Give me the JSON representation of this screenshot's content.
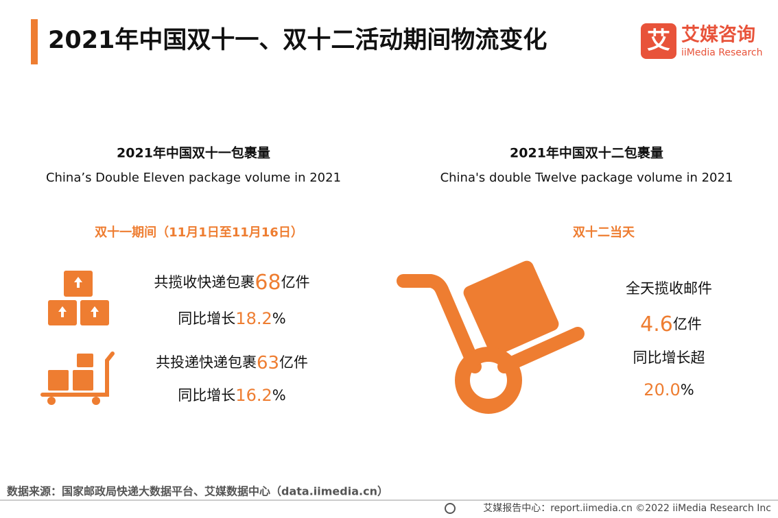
{
  "header": {
    "title": "2021年中国双十一、双十二活动期间物流变化",
    "logo_mark": "艾",
    "logo_name": "艾媒咨询",
    "logo_sub": "iiMedia Research"
  },
  "left": {
    "title": "2021年中国双十一包裹量",
    "subtitle": "China’s Double Eleven package volume in 2021",
    "period": "双十一期间（11月1日至11月16日）",
    "items": [
      {
        "line1_prefix": "共揽收快递包裹",
        "line1_value": "68",
        "line1_suffix": "亿件",
        "line2_prefix": "同比增长",
        "line2_value": "18.2",
        "line2_suffix": "%"
      },
      {
        "line1_prefix": "共投递快递包裹",
        "line1_value": "63",
        "line1_suffix": "亿件",
        "line2_prefix": "同比增长",
        "line2_value": "16.2",
        "line2_suffix": "%"
      }
    ]
  },
  "right": {
    "title": "2021年中国双十二包裹量",
    "subtitle": "China's double Twelve package volume in 2021",
    "period": "双十二当天",
    "line1": "全天揽收邮件",
    "value1": "4.6",
    "unit1": "亿件",
    "line2": "同比增长超",
    "value2": "20.0",
    "unit2": "%"
  },
  "footer": {
    "source": "数据来源：国家邮政局快递大数据平台、艾媒数据中心（data.iimedia.cn）",
    "credit": "艾媒报告中心：report.iimedia.cn  ©2022  iiMedia Research  Inc"
  }
}
